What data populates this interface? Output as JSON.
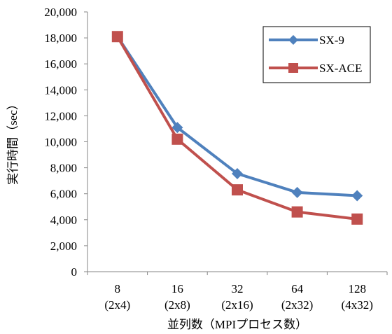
{
  "chart_data": {
    "type": "line",
    "title": "",
    "xlabel": "並列数（MPIプロセス数）",
    "ylabel": "実行時間（sec）",
    "categories": [
      "8",
      "16",
      "32",
      "64",
      "128"
    ],
    "category_sublabels": [
      "(2x4)",
      "(2x8)",
      "(2x16)",
      "(2x32)",
      "(4x32)"
    ],
    "ylim": [
      0,
      20000
    ],
    "ytick_values": [
      0,
      2000,
      4000,
      6000,
      8000,
      10000,
      12000,
      14000,
      16000,
      18000,
      20000
    ],
    "ytick_labels": [
      "0",
      "2,000",
      "4,000",
      "6,000",
      "8,000",
      "10,000",
      "12,000",
      "14,000",
      "16,000",
      "18,000",
      "20,000"
    ],
    "grid": false,
    "legend_position": "top-right",
    "series": [
      {
        "name": "SX-9",
        "values": [
          18100,
          11100,
          7550,
          6100,
          5850
        ],
        "color": "#4F81BD",
        "marker": "diamond"
      },
      {
        "name": "SX-ACE",
        "values": [
          18100,
          10200,
          6300,
          4600,
          4050
        ],
        "color": "#C0504D",
        "marker": "square"
      }
    ]
  }
}
